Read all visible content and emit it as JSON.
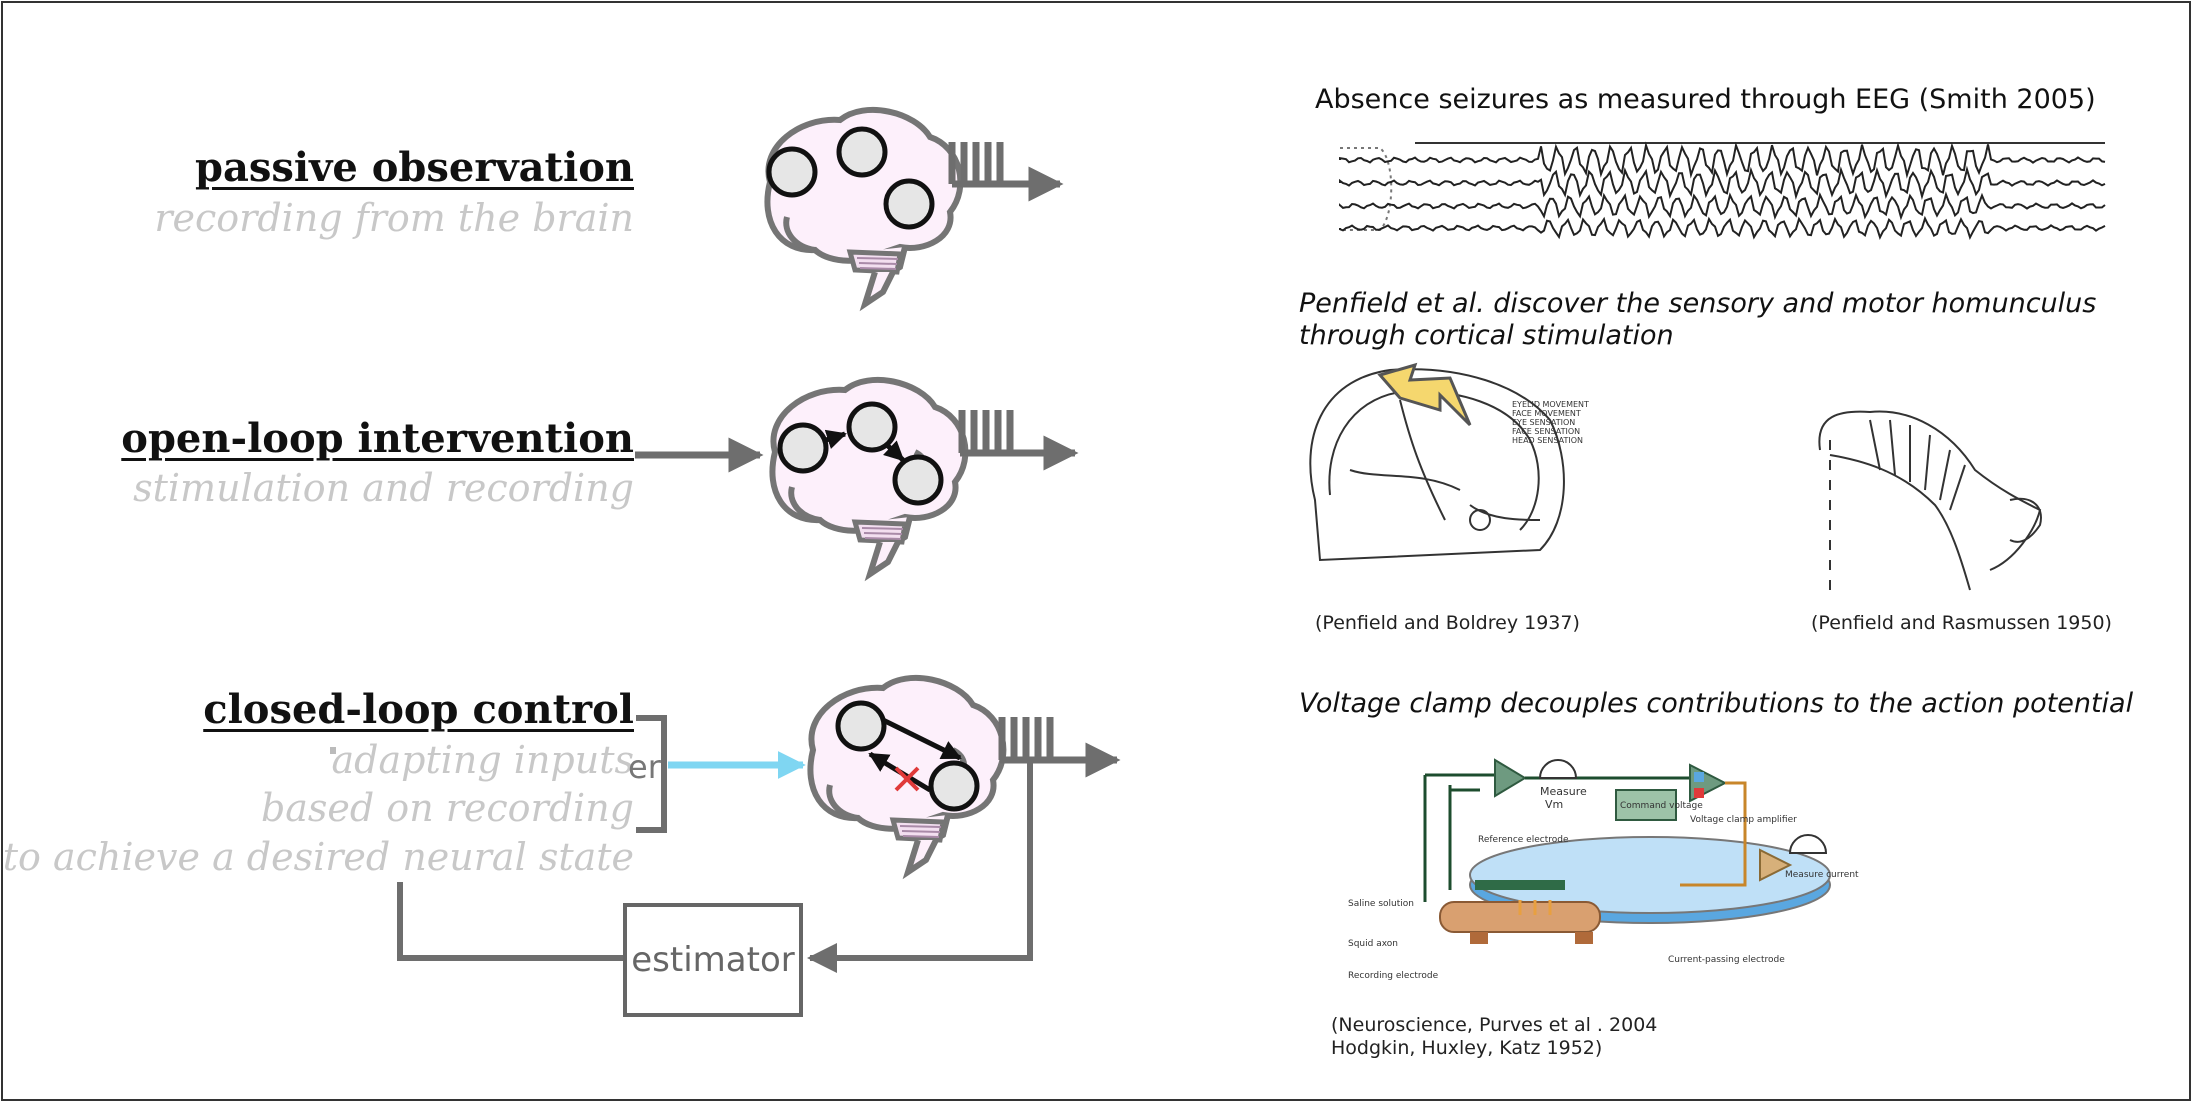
{
  "left": {
    "rows": [
      {
        "title": "passive observation",
        "subtitle": "recording from the brain"
      },
      {
        "title": "open-loop intervention",
        "subtitle": "stimulation and recording"
      },
      {
        "title": "closed-loop control",
        "subtitle_lines": [
          "adapting inputs",
          "based on recording",
          "to achieve a desired neural state"
        ]
      }
    ],
    "estimator_label": "estimator",
    "controller_fragment": "er"
  },
  "right": {
    "eeg_title": "Absence seizures as measured through EEG (Smith 2005)",
    "penfield_title_lines": [
      "Penfield et al. discover the sensory and motor homunculus",
      "through cortical stimulation"
    ],
    "penfield_caption_left": "(Penfield and Boldrey 1937)",
    "penfield_caption_right": "(Penfield and Rasmussen 1950)",
    "voltage_title": "Voltage clamp decouples contributions to the action potential",
    "voltage_labels": {
      "measure_vm": "Measure",
      "vm": "Vm",
      "command_voltage": "Command voltage",
      "voltage_clamp_amplifier": "Voltage clamp amplifier",
      "measure_current": "Measure current",
      "reference_electrode": "Reference electrode",
      "saline_solution": "Saline solution",
      "squid_axon": "Squid axon",
      "recording_electrode": "Recording electrode",
      "current_passing_electrode": "Current-passing electrode"
    },
    "voltage_caption_lines": [
      "(Neuroscience, Purves et al . 2004",
      "Hodgkin, Huxley, Katz 1952)"
    ],
    "motor_cortex_legend": [
      "EYELID MOVEMENT",
      "FACE MOVEMENT",
      "EYE SENSATION",
      "FACE SENSATION",
      "HEAD SENSATION"
    ]
  },
  "colors": {
    "brain_fill": "#fdf0fb",
    "brain_stroke": "#757575",
    "arrow_gray": "#6e6e6e",
    "cyan_arrow": "#7fd6f2",
    "red_x": "#e03a3a",
    "subtitle_gray": "#c8c8c8",
    "bolt_yellow": "#f5d76e",
    "dish_blue": "#5aa7e0",
    "axon_orange": "#d9a070",
    "amp_green": "#6e9a80",
    "amp_tan": "#d7b07a"
  },
  "icons": [
    "brain-icon",
    "neuron-node-icon",
    "spike-train-icon",
    "lightning-bolt-icon",
    "meter-gauge-icon",
    "red-x-icon"
  ]
}
